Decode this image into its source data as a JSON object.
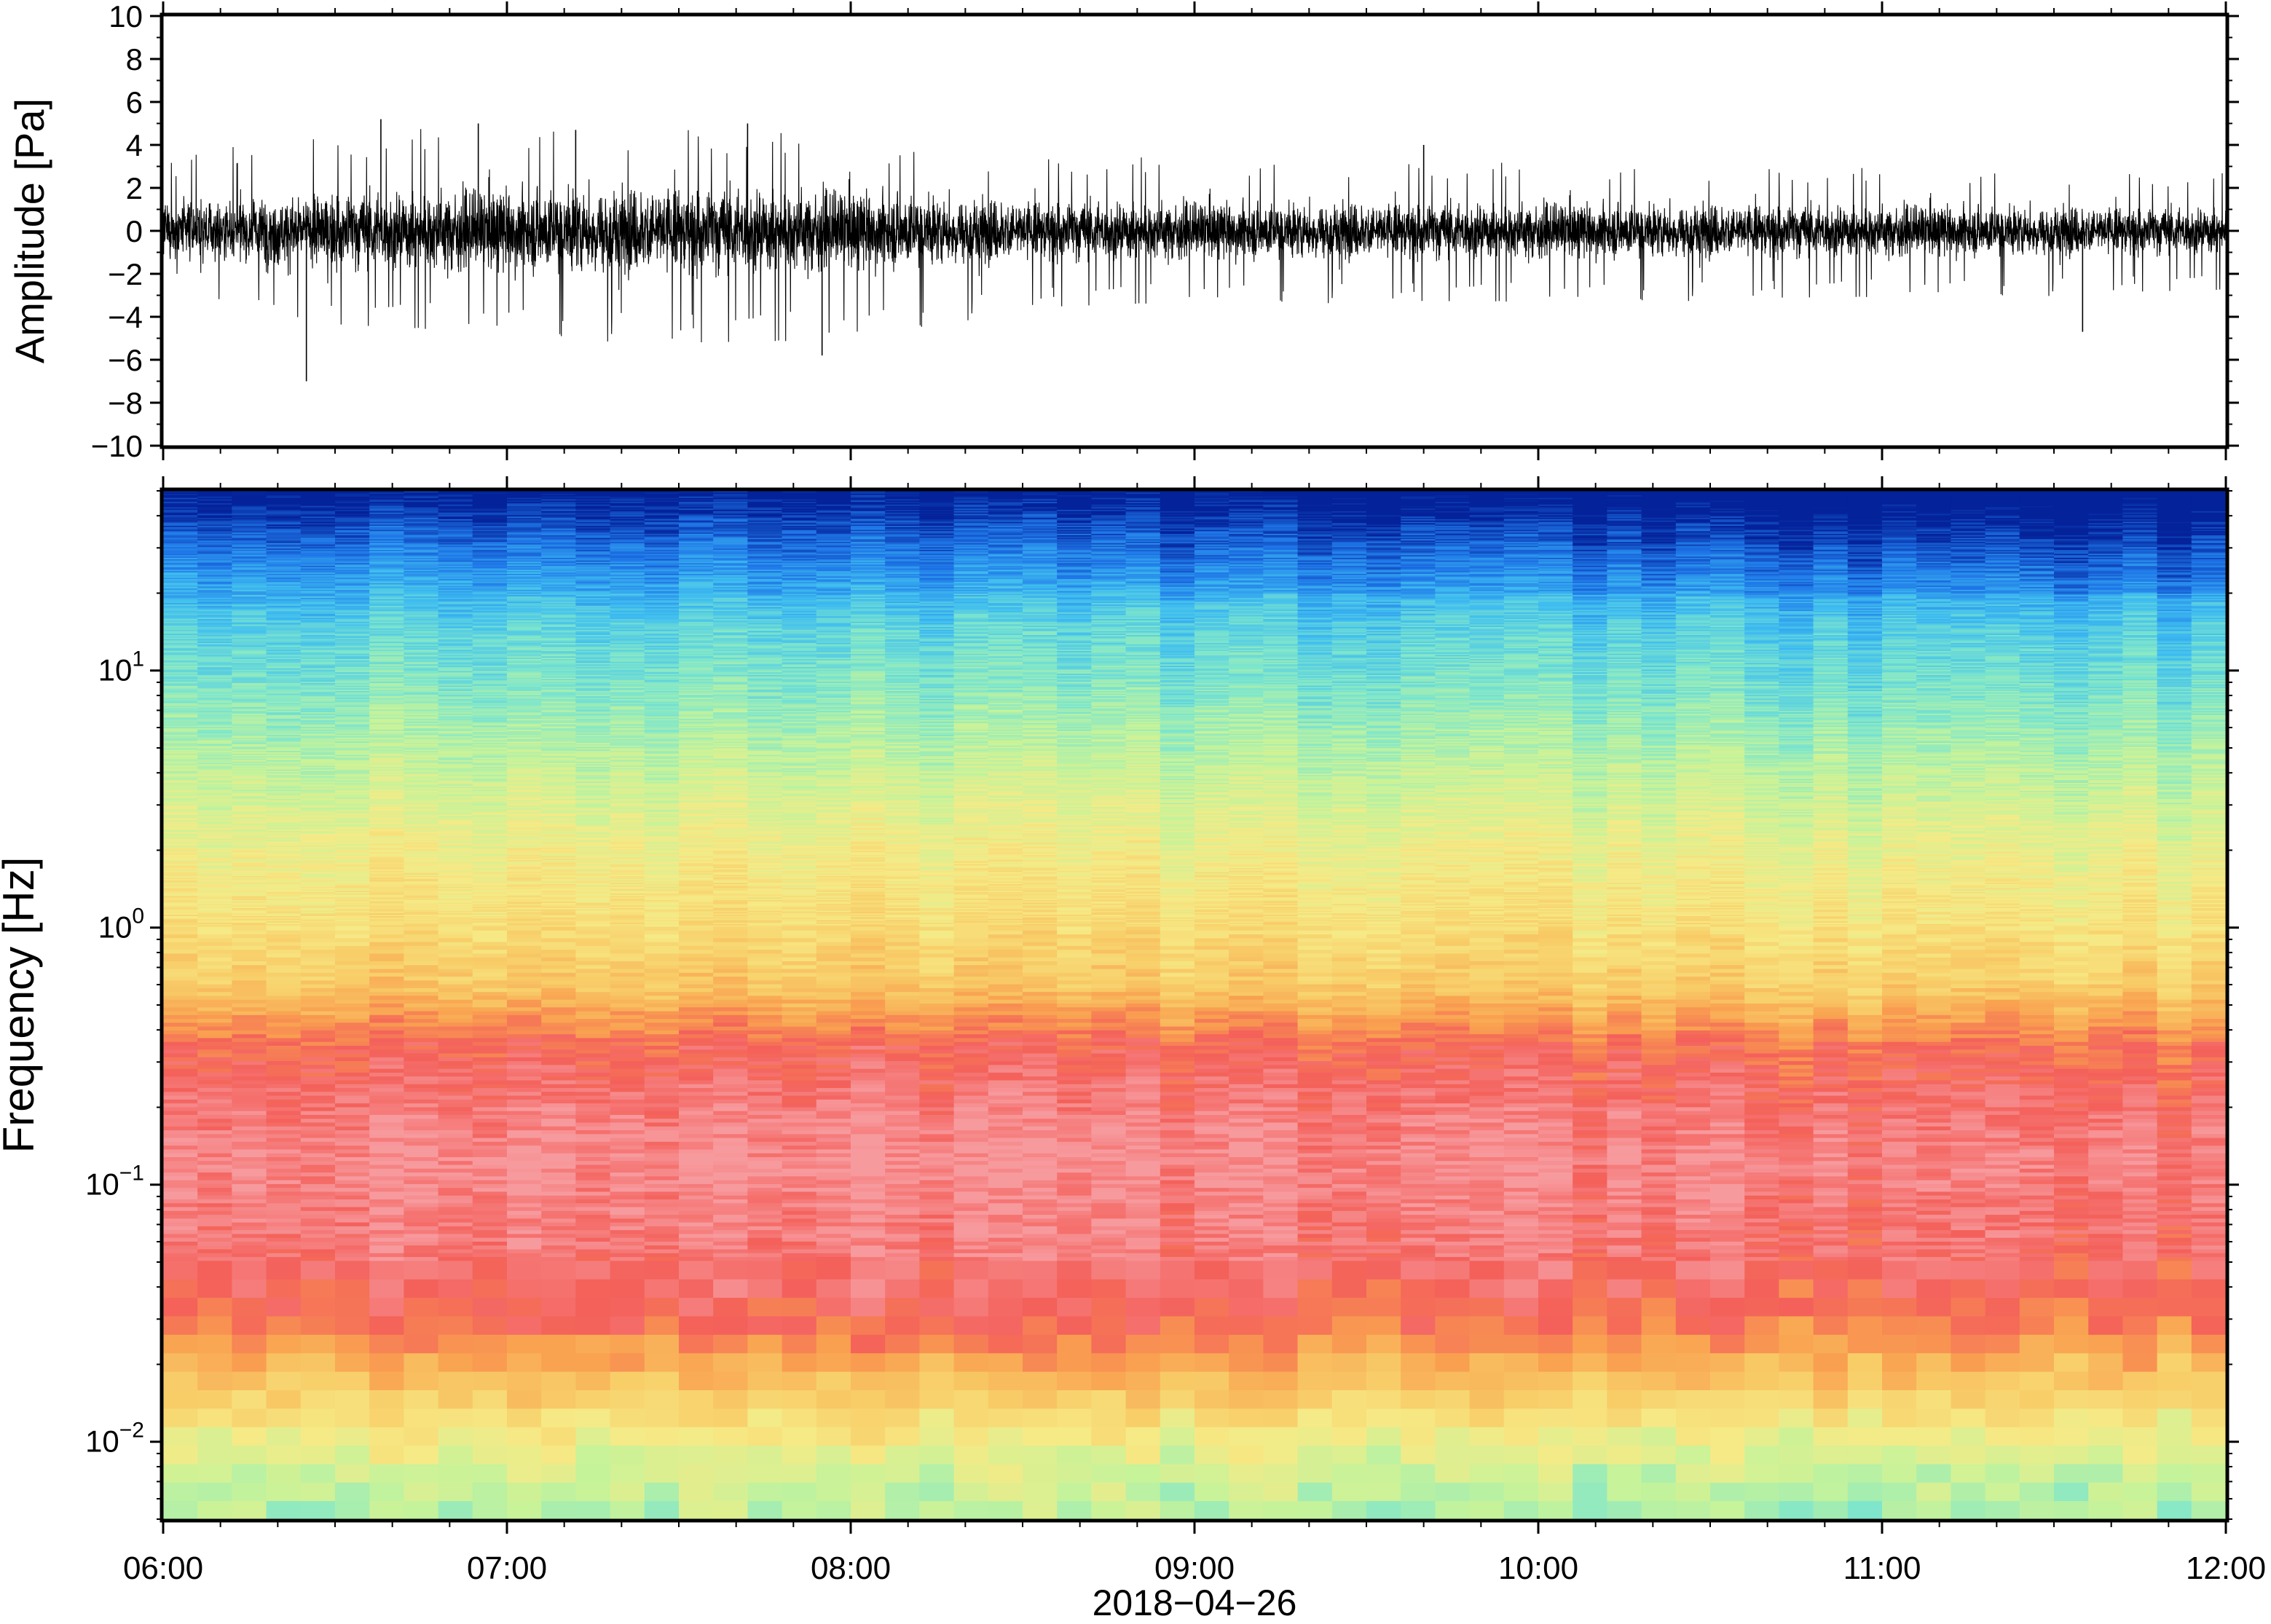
{
  "figure": {
    "date_label": "2018−04−26"
  },
  "chart_data": [
    {
      "type": "line",
      "ylabel": "Amplitude [Pa]",
      "xlabel": "",
      "xlim": [
        "06:00",
        "12:00"
      ],
      "ylim": [
        -10,
        10
      ],
      "yticks": [
        10,
        8,
        6,
        4,
        2,
        0,
        -2,
        -4,
        -6,
        -8,
        -10
      ],
      "ytick_labels": [
        "10",
        "8",
        "6",
        "4",
        "2",
        "0",
        "−2",
        "−4",
        "−6",
        "−8",
        "−10"
      ],
      "series": [
        {
          "color": "#000000",
          "description_hours": "x in hours since 06:00 on 2018-04-26; envelope values in Pa",
          "envelope": {
            "x": [
              "06:00",
              "06:30",
              "07:00",
              "07:30",
              "08:00",
              "08:30",
              "09:00",
              "09:30",
              "10:00",
              "10:30",
              "11:00",
              "11:30",
              "12:00"
            ],
            "max": [
              3.0,
              4.0,
              4.5,
              4.5,
              3.8,
              3.2,
              3.0,
              3.0,
              2.8,
              2.8,
              2.6,
              2.6,
              2.4
            ],
            "min": [
              -3.2,
              -4.0,
              -4.3,
              -4.8,
              -4.6,
              -3.3,
              -3.0,
              -3.0,
              -3.0,
              -2.9,
              -2.8,
              -2.7,
              -2.5
            ]
          },
          "spikes": [
            {
              "x": "06:25",
              "y": -7.0
            },
            {
              "x": "06:38",
              "y": 5.2
            },
            {
              "x": "06:55",
              "y": 5.0
            },
            {
              "x": "07:12",
              "y": 4.7
            },
            {
              "x": "07:42",
              "y": 5.0
            },
            {
              "x": "07:55",
              "y": -5.8
            },
            {
              "x": "09:40",
              "y": 4.0
            },
            {
              "x": "11:35",
              "y": -4.7
            }
          ]
        }
      ]
    },
    {
      "type": "heatmap",
      "ylabel": "Frequency [Hz]",
      "xlabel": "2018−04−26",
      "xlim": [
        "06:00",
        "12:00"
      ],
      "y_scale": "log",
      "ylim": [
        0.005,
        50
      ],
      "xtick_labels": [
        "06:00",
        "07:00",
        "08:00",
        "09:00",
        "10:00",
        "11:00",
        "12:00"
      ],
      "ytick_values": [
        10,
        1,
        0.1,
        0.01
      ],
      "ytick_labels": [
        {
          "base": "10",
          "exp": "1"
        },
        {
          "base": "10",
          "exp": "0"
        },
        {
          "base": "10",
          "exp": "−1"
        },
        {
          "base": "10",
          "exp": "−2"
        }
      ],
      "colormap": [
        "#04229a",
        "#1f77e8",
        "#3fbdf0",
        "#7ee6cc",
        "#c6f39a",
        "#f6ea86",
        "#f8cd68",
        "#f9a150",
        "#f4605a",
        "#f79a9e"
      ],
      "colormap_note": "colors ordered from lowest to highest spectral power; no colorbar shown",
      "power_profile": {
        "frequency_hz": [
          50,
          30,
          15,
          8,
          4,
          2,
          1,
          0.6,
          0.35,
          0.2,
          0.12,
          0.08,
          0.05,
          0.03,
          0.02,
          0.012,
          0.008,
          0.005
        ],
        "level_index": [
          0.0,
          1.2,
          2.6,
          3.3,
          4.2,
          5.0,
          5.6,
          6.2,
          8.0,
          8.6,
          8.9,
          8.7,
          8.5,
          8.0,
          6.8,
          5.4,
          4.4,
          3.9
        ]
      }
    }
  ]
}
